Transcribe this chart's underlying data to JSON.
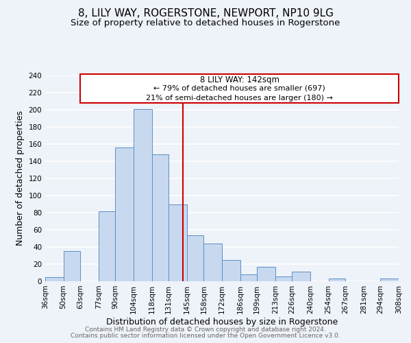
{
  "title": "8, LILY WAY, ROGERSTONE, NEWPORT, NP10 9LG",
  "subtitle": "Size of property relative to detached houses in Rogerstone",
  "xlabel": "Distribution of detached houses by size in Rogerstone",
  "ylabel": "Number of detached properties",
  "bar_edges": [
    36,
    50,
    63,
    77,
    90,
    104,
    118,
    131,
    145,
    158,
    172,
    186,
    199,
    213,
    226,
    240,
    254,
    267,
    281,
    294,
    308
  ],
  "bar_heights": [
    5,
    35,
    0,
    82,
    156,
    201,
    148,
    90,
    54,
    44,
    25,
    8,
    17,
    6,
    11,
    0,
    3,
    0,
    0,
    3
  ],
  "bar_face_color": "#c8d9ef",
  "bar_edge_color": "#5b8ec4",
  "vline_x": 142,
  "vline_color": "#cc0000",
  "annotation_title": "8 LILY WAY: 142sqm",
  "annotation_line1": "← 79% of detached houses are smaller (697)",
  "annotation_line2": "21% of semi-detached houses are larger (180) →",
  "annotation_box_color": "#cc0000",
  "annotation_box_fill": "#ffffff",
  "ylim": [
    0,
    240
  ],
  "yticks": [
    0,
    20,
    40,
    60,
    80,
    100,
    120,
    140,
    160,
    180,
    200,
    220,
    240
  ],
  "tick_labels": [
    "36sqm",
    "50sqm",
    "63sqm",
    "77sqm",
    "90sqm",
    "104sqm",
    "118sqm",
    "131sqm",
    "145sqm",
    "158sqm",
    "172sqm",
    "186sqm",
    "199sqm",
    "213sqm",
    "226sqm",
    "240sqm",
    "254sqm",
    "267sqm",
    "281sqm",
    "294sqm",
    "308sqm"
  ],
  "footer1": "Contains HM Land Registry data © Crown copyright and database right 2024.",
  "footer2": "Contains public sector information licensed under the Open Government Licence v3.0.",
  "background_color": "#eef2f9",
  "plot_bg_color": "#eef2f9",
  "grid_color": "#ffffff",
  "title_fontsize": 11,
  "subtitle_fontsize": 9.5,
  "axis_label_fontsize": 9,
  "tick_fontsize": 7.5,
  "footer_fontsize": 6.5
}
